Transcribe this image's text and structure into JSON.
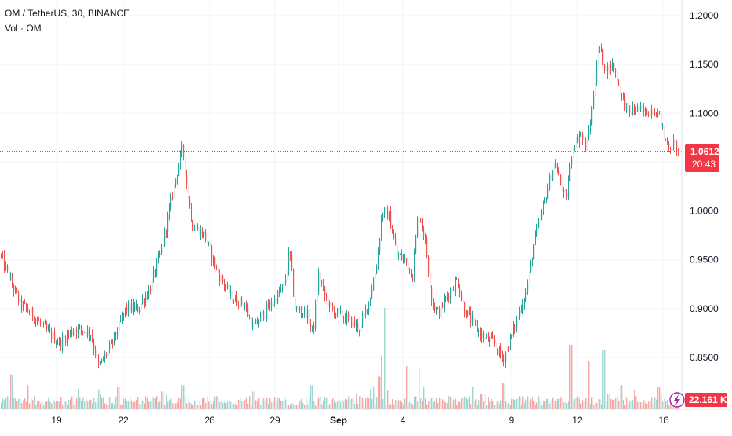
{
  "header": {
    "symbol_title": "OM / TetherUS, 30, BINANCE",
    "volume_label": "Vol · OM"
  },
  "price_tag": {
    "price": "1.0612",
    "countdown": "20:43"
  },
  "volume_tag": {
    "value": "22.161 K"
  },
  "colors": {
    "up": "#26a69a",
    "down": "#ef5350",
    "up_volume": "#9fd6cf",
    "down_volume": "#f5a6a5",
    "price_line": "#f23645",
    "grid": "#f0f3fa",
    "axis_text": "#131722",
    "lightning": "#9c27b0"
  },
  "icons": {
    "lightning": "lightning-icon"
  },
  "chart_data": {
    "type": "candlestick",
    "y_axis": {
      "ticks": [
        "1.2000",
        "1.1500",
        "1.1000",
        "1.0500",
        "1.0000",
        "0.9500",
        "0.9000",
        "0.8500"
      ],
      "tick_values": [
        1.2,
        1.15,
        1.1,
        1.05,
        1.0,
        0.95,
        0.9,
        0.85
      ],
      "range": [
        0.835,
        1.205
      ]
    },
    "x_axis": {
      "ticks": [
        "19",
        "22",
        "26",
        "29",
        "Sep",
        "4",
        "9",
        "12",
        "16"
      ],
      "bold_ticks": [
        "Sep"
      ]
    },
    "current_price": 1.0612,
    "price_anchors": [
      [
        0,
        0.955
      ],
      [
        12,
        0.93
      ],
      [
        25,
        0.905
      ],
      [
        40,
        0.895
      ],
      [
        55,
        0.88
      ],
      [
        75,
        0.865
      ],
      [
        95,
        0.88
      ],
      [
        115,
        0.875
      ],
      [
        125,
        0.84
      ],
      [
        140,
        0.86
      ],
      [
        160,
        0.9
      ],
      [
        175,
        0.9
      ],
      [
        190,
        0.92
      ],
      [
        205,
        0.96
      ],
      [
        215,
        1.0
      ],
      [
        222,
        1.03
      ],
      [
        232,
        1.065
      ],
      [
        238,
        1.02
      ],
      [
        245,
        0.985
      ],
      [
        260,
        0.975
      ],
      [
        275,
        0.94
      ],
      [
        295,
        0.91
      ],
      [
        310,
        0.905
      ],
      [
        322,
        0.88
      ],
      [
        335,
        0.895
      ],
      [
        350,
        0.91
      ],
      [
        362,
        0.925
      ],
      [
        368,
        0.96
      ],
      [
        375,
        0.9
      ],
      [
        390,
        0.895
      ],
      [
        398,
        0.875
      ],
      [
        405,
        0.935
      ],
      [
        412,
        0.915
      ],
      [
        420,
        0.9
      ],
      [
        440,
        0.89
      ],
      [
        458,
        0.88
      ],
      [
        470,
        0.91
      ],
      [
        480,
        0.95
      ],
      [
        486,
        1.0
      ],
      [
        495,
        0.995
      ],
      [
        505,
        0.955
      ],
      [
        515,
        0.95
      ],
      [
        525,
        0.935
      ],
      [
        532,
        1.0
      ],
      [
        540,
        0.975
      ],
      [
        550,
        0.905
      ],
      [
        558,
        0.895
      ],
      [
        570,
        0.915
      ],
      [
        582,
        0.93
      ],
      [
        590,
        0.9
      ],
      [
        602,
        0.885
      ],
      [
        615,
        0.87
      ],
      [
        628,
        0.865
      ],
      [
        640,
        0.848
      ],
      [
        650,
        0.87
      ],
      [
        660,
        0.895
      ],
      [
        670,
        0.92
      ],
      [
        680,
        0.97
      ],
      [
        690,
        1.0
      ],
      [
        700,
        1.035
      ],
      [
        706,
        1.05
      ],
      [
        712,
        1.03
      ],
      [
        720,
        1.01
      ],
      [
        728,
        1.065
      ],
      [
        738,
        1.08
      ],
      [
        745,
        1.065
      ],
      [
        752,
        1.095
      ],
      [
        758,
        1.145
      ],
      [
        762,
        1.17
      ],
      [
        770,
        1.145
      ],
      [
        780,
        1.15
      ],
      [
        790,
        1.12
      ],
      [
        800,
        1.1
      ],
      [
        810,
        1.105
      ],
      [
        820,
        1.1
      ],
      [
        830,
        1.105
      ],
      [
        838,
        1.1
      ],
      [
        845,
        1.075
      ],
      [
        852,
        1.065
      ],
      [
        858,
        1.07
      ],
      [
        864,
        1.0612
      ]
    ],
    "volume_spikes": [
      [
        14,
        0.32
      ],
      [
        35,
        0.22
      ],
      [
        125,
        0.18
      ],
      [
        150,
        0.2
      ],
      [
        206,
        0.16
      ],
      [
        232,
        0.22
      ],
      [
        322,
        0.16
      ],
      [
        396,
        0.22
      ],
      [
        482,
        0.3
      ],
      [
        485,
        0.5
      ],
      [
        489,
        0.95
      ],
      [
        517,
        0.4
      ],
      [
        533,
        0.38
      ],
      [
        612,
        0.14
      ],
      [
        640,
        0.24
      ],
      [
        726,
        0.6
      ],
      [
        749,
        0.45
      ],
      [
        768,
        0.55
      ],
      [
        790,
        0.22
      ],
      [
        838,
        0.2
      ]
    ]
  }
}
